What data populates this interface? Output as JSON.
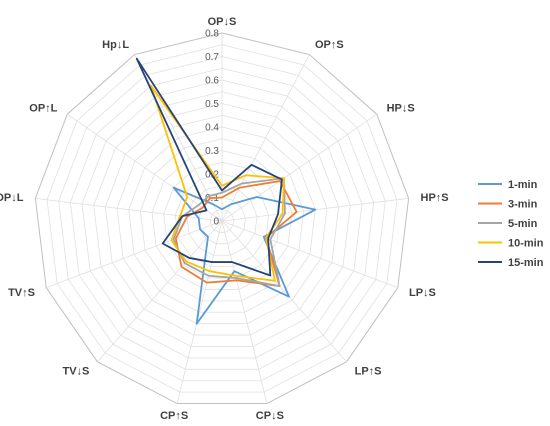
{
  "chart_data": {
    "type": "radar",
    "title": "",
    "categories": [
      "OP↓S",
      "OP↑S",
      "HP↓S",
      "HP↑S",
      "LP↓S",
      "LP↑S",
      "CP↓S",
      "CP↑S",
      "TV↓S",
      "TV↑S",
      "OP↓L",
      "OP↑L",
      "Hp↓L"
    ],
    "ticks": [
      "0",
      "0.1",
      "0.2",
      "0.3",
      "0.4",
      "0.5",
      "0.6",
      "0.7",
      "0.8"
    ],
    "rlim": [
      0,
      0.8
    ],
    "minor_rings": 16,
    "legend_position": "right",
    "series": [
      {
        "name": "1-min",
        "color": "#5b9bd5",
        "values": [
          0.05,
          0.08,
          0.18,
          0.4,
          0.19,
          0.43,
          0.22,
          0.45,
          0.09,
          0.1,
          0.1,
          0.25,
          0.08
        ]
      },
      {
        "name": "3-min",
        "color": "#ed7d31",
        "values": [
          0.1,
          0.16,
          0.3,
          0.32,
          0.2,
          0.37,
          0.26,
          0.27,
          0.26,
          0.21,
          0.15,
          0.1,
          0.11
        ]
      },
      {
        "name": "5-min",
        "color": "#a5a5a5",
        "values": [
          0.12,
          0.18,
          0.32,
          0.27,
          0.22,
          0.37,
          0.25,
          0.24,
          0.24,
          0.22,
          0.17,
          0.12,
          0.12
        ]
      },
      {
        "name": "10-min",
        "color": "#ffc000",
        "values": [
          0.15,
          0.22,
          0.32,
          0.26,
          0.2,
          0.34,
          0.24,
          0.22,
          0.23,
          0.23,
          0.18,
          0.18,
          0.65
        ]
      },
      {
        "name": "15-min",
        "color": "#264478",
        "values": [
          0.13,
          0.27,
          0.31,
          0.24,
          0.21,
          0.31,
          0.18,
          0.18,
          0.21,
          0.27,
          0.17,
          0.08,
          0.78
        ]
      }
    ]
  }
}
